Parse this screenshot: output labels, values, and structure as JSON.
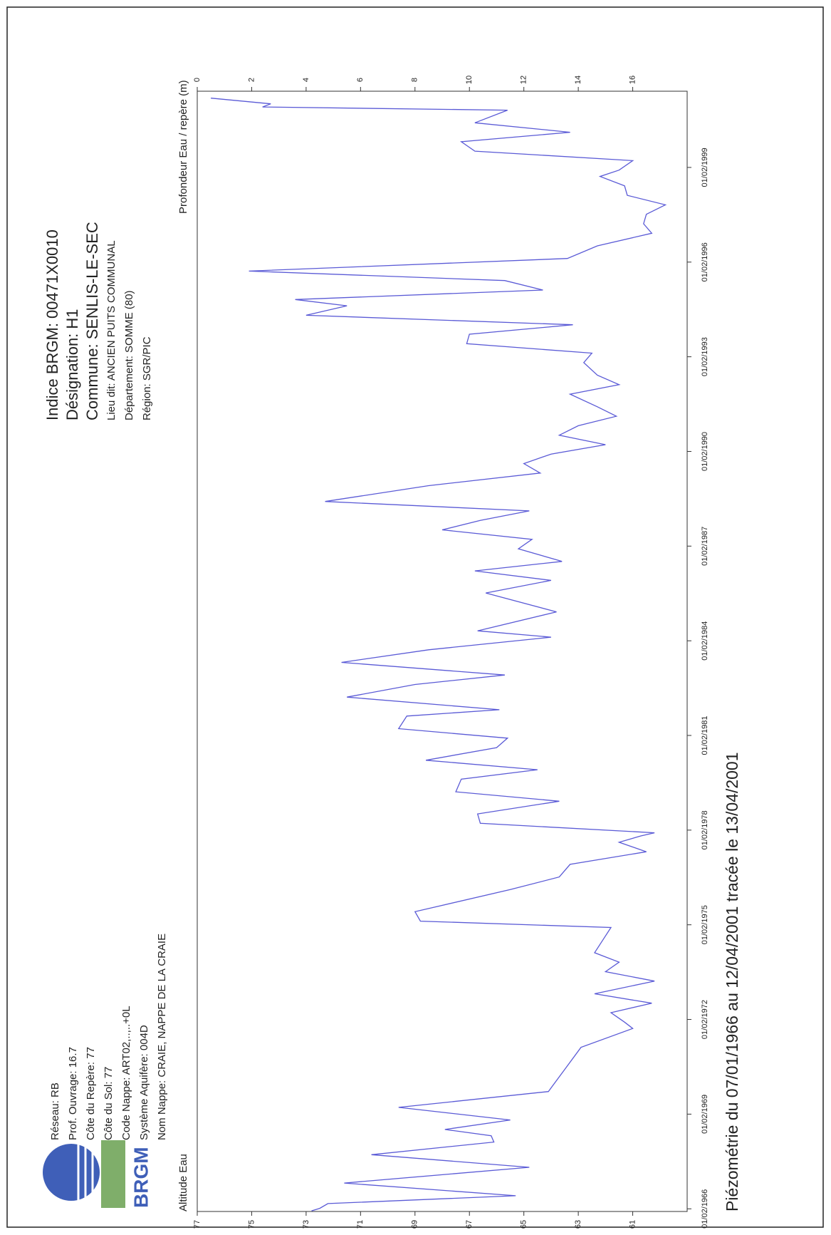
{
  "chart_data": {
    "type": "line",
    "title": "Piézométrie du 07/01/1966 au 12/04/2001 tracée le 13/04/2001",
    "info_lines": [
      "Indice BRGM: 00471X0010",
      "Désignation: H1",
      "Commune: SENLIS-LE-SEC",
      "Lieu dit: ANCIEN PUITS COMMUNAL",
      "Département: SOMME (80)",
      "Région: SGR/PIC"
    ],
    "station_lines": [
      "Réseau: RB",
      "Prof. Ouvrage: 16.7",
      "Côte du Repère: 77",
      "Côte du Sol: 77",
      "Code Nappe: ART02,..,..+0L",
      "Système Aquifère: 004D",
      "Nom Nappe: CRAIE, NAPPE DE LA CRAIE"
    ],
    "logo_text": "BRGM",
    "ylabel": "Altitude Eau",
    "y2label": "Profondeur Eau / repère (m)",
    "x": [
      1966.02,
      1966.1,
      1966.25,
      1966.5,
      1966.9,
      1967.4,
      1967.8,
      1968.2,
      1968.4,
      1968.6,
      1968.9,
      1969.3,
      1969.8,
      1970.5,
      1971.2,
      1971.8,
      1972.0,
      1972.3,
      1972.6,
      1972.9,
      1973.3,
      1973.6,
      1973.9,
      1974.2,
      1974.6,
      1975.0,
      1975.2,
      1975.5,
      1976.2,
      1976.6,
      1977.0,
      1977.4,
      1977.7,
      1977.9,
      1978.0,
      1978.3,
      1978.6,
      1979.0,
      1979.3,
      1979.7,
      1980.0,
      1980.3,
      1980.7,
      1981.0,
      1981.3,
      1981.7,
      1981.9,
      1982.3,
      1982.7,
      1983.0,
      1983.4,
      1983.8,
      1984.2,
      1984.4,
      1985.0,
      1985.6,
      1986.0,
      1986.3,
      1986.6,
      1987.0,
      1987.3,
      1987.6,
      1987.9,
      1988.2,
      1988.5,
      1989.0,
      1989.4,
      1989.7,
      1990.0,
      1990.3,
      1990.6,
      1990.9,
      1991.2,
      1991.5,
      1991.9,
      1992.2,
      1992.5,
      1992.9,
      1993.2,
      1993.5,
      1993.8,
      1994.1,
      1994.4,
      1994.7,
      1994.9,
      1995.2,
      1995.5,
      1995.8,
      1996.2,
      1996.6,
      1997.0,
      1997.3,
      1997.6,
      1997.9,
      1998.2,
      1998.5,
      1998.8,
      1999.0,
      1999.3,
      1999.6,
      1999.9,
      2000.2,
      2000.5,
      2000.9,
      2001.0,
      2001.1,
      2001.28
    ],
    "series": [
      {
        "color": "#5a5ad6",
        "values": [
          72.8,
          72.5,
          72.2,
          65.3,
          71.6,
          64.8,
          70.6,
          66.1,
          66.2,
          67.9,
          65.5,
          69.6,
          64.1,
          63.5,
          62.9,
          61.0,
          61.3,
          61.8,
          60.3,
          62.4,
          60.2,
          62.0,
          61.5,
          62.4,
          62.1,
          61.8,
          68.8,
          69.0,
          65.5,
          63.7,
          63.3,
          60.5,
          61.5,
          60.7,
          60.2,
          66.6,
          66.7,
          63.7,
          67.5,
          67.3,
          64.5,
          68.6,
          66.0,
          65.6,
          69.6,
          69.3,
          65.9,
          71.5,
          69.0,
          65.7,
          71.7,
          68.5,
          64.0,
          66.7,
          63.8,
          66.4,
          64.0,
          66.8,
          63.6,
          65.2,
          64.7,
          68.0,
          66.6,
          64.8,
          72.3,
          68.5,
          64.4,
          65.0,
          64.0,
          62.0,
          63.7,
          63.0,
          61.6,
          62.3,
          63.3,
          61.5,
          62.3,
          62.8,
          62.5,
          67.1,
          67.0,
          63.2,
          73.0,
          71.5,
          73.4,
          64.3,
          65.7,
          75.1,
          63.4,
          62.3,
          60.3,
          60.6,
          60.5,
          59.8,
          61.2,
          61.3,
          62.2,
          61.5,
          61.0,
          66.8,
          67.3,
          63.3,
          66.8,
          65.6,
          74.6,
          74.3,
          76.5
        ]
      }
    ],
    "xlim": [
      1966.0,
      2001.5
    ],
    "xticks": [
      {
        "value": 1966.085,
        "label": "01/02/1966"
      },
      {
        "value": 1969.085,
        "label": "01/02/1969"
      },
      {
        "value": 1972.085,
        "label": "01/02/1972"
      },
      {
        "value": 1975.085,
        "label": "01/02/1975"
      },
      {
        "value": 1978.085,
        "label": "01/02/1978"
      },
      {
        "value": 1981.085,
        "label": "01/02/1981"
      },
      {
        "value": 1984.085,
        "label": "01/02/1984"
      },
      {
        "value": 1987.085,
        "label": "01/02/1987"
      },
      {
        "value": 1990.085,
        "label": "01/02/1990"
      },
      {
        "value": 1993.085,
        "label": "01/02/1993"
      },
      {
        "value": 1996.085,
        "label": "01/02/1996"
      },
      {
        "value": 1999.085,
        "label": "01/02/1999"
      }
    ],
    "ylim": [
      77,
      59
    ],
    "yticks": [
      77,
      75,
      73,
      71,
      69,
      67,
      65,
      63,
      61
    ],
    "y2lim": [
      0,
      18
    ],
    "y2ticks": [
      0,
      2,
      4,
      6,
      8,
      10,
      12,
      14,
      16
    ]
  }
}
